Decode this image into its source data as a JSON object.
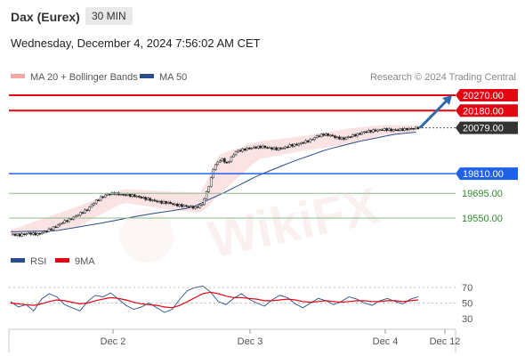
{
  "header": {
    "instrument": "Dax (Eurex)",
    "timeframe": "30 MIN",
    "datetime": "Wednesday, December 4, 2024 7:56:02 AM CET"
  },
  "legend": {
    "ma_bollinger": "MA 20 + Bollinger Bands",
    "ma50": "MA 50",
    "credit": "Research © 2024 Trading Central",
    "rsi": "RSI",
    "rsi_ma": "9MA"
  },
  "colors": {
    "target": "#e30613",
    "current": "#333333",
    "pivot": "#1e63e6",
    "support": "#2e8b2e",
    "ma20": "#f4a6a6",
    "ma50": "#2a4e8c",
    "arrow": "#2e6aa8"
  },
  "watermark": "WikiFX",
  "chart_data": [
    {
      "type": "candlestick",
      "title": "Dax (Eurex) 30 MIN",
      "ylim": [
        19380,
        20330
      ],
      "x_ticks": [
        "Dec 2",
        "Dec 3",
        "Dec 4",
        "Dec 12"
      ],
      "levels": [
        {
          "value": 20270.0,
          "label": "20270.00",
          "kind": "target"
        },
        {
          "value": 20180.0,
          "label": "20180.00",
          "kind": "target"
        },
        {
          "value": 20079.0,
          "label": "20079.00",
          "kind": "current"
        },
        {
          "value": 19810.0,
          "label": "19810.00",
          "kind": "pivot"
        },
        {
          "value": 19695.0,
          "label": "19695.00",
          "kind": "support"
        },
        {
          "value": 19550.0,
          "label": "19550.00",
          "kind": "support"
        }
      ],
      "price_path": [
        [
          0,
          19455
        ],
        [
          4,
          19450
        ],
        [
          8,
          19460
        ],
        [
          12,
          19455
        ],
        [
          16,
          19475
        ],
        [
          20,
          19500
        ],
        [
          23,
          19525
        ],
        [
          26,
          19540
        ],
        [
          30,
          19570
        ],
        [
          34,
          19600
        ],
        [
          37,
          19640
        ],
        [
          40,
          19670
        ],
        [
          43,
          19690
        ],
        [
          46,
          19695
        ],
        [
          49,
          19688
        ],
        [
          52,
          19685
        ],
        [
          55,
          19680
        ],
        [
          58,
          19670
        ],
        [
          61,
          19660
        ],
        [
          64,
          19650
        ],
        [
          67,
          19642
        ],
        [
          70,
          19640
        ],
        [
          73,
          19628
        ],
        [
          76,
          19622
        ],
        [
          79,
          19618
        ],
        [
          82,
          19610
        ],
        [
          85,
          19630
        ],
        [
          87,
          19700
        ],
        [
          89,
          19780
        ],
        [
          90,
          19840
        ],
        [
          92,
          19880
        ],
        [
          94,
          19895
        ],
        [
          96,
          19870
        ],
        [
          98,
          19905
        ],
        [
          100,
          19940
        ],
        [
          103,
          19950
        ],
        [
          106,
          19960
        ],
        [
          109,
          19965
        ],
        [
          112,
          19968
        ],
        [
          115,
          19960
        ],
        [
          118,
          19955
        ],
        [
          121,
          19960
        ],
        [
          124,
          19975
        ],
        [
          127,
          19980
        ],
        [
          130,
          19995
        ],
        [
          133,
          20005
        ],
        [
          136,
          20030
        ],
        [
          139,
          20040
        ],
        [
          142,
          20035
        ],
        [
          145,
          20020
        ],
        [
          148,
          20015
        ],
        [
          151,
          20030
        ],
        [
          154,
          20040
        ],
        [
          157,
          20055
        ],
        [
          160,
          20060
        ],
        [
          163,
          20065
        ],
        [
          166,
          20070
        ],
        [
          169,
          20065
        ],
        [
          172,
          20068
        ],
        [
          175,
          20070
        ],
        [
          178,
          20075
        ],
        [
          181,
          20079
        ]
      ],
      "ma50_path": [
        [
          0,
          19470
        ],
        [
          20,
          19475
        ],
        [
          40,
          19520
        ],
        [
          60,
          19570
        ],
        [
          80,
          19610
        ],
        [
          95,
          19700
        ],
        [
          110,
          19800
        ],
        [
          125,
          19880
        ],
        [
          140,
          19950
        ],
        [
          155,
          20000
        ],
        [
          170,
          20040
        ],
        [
          181,
          20055
        ]
      ],
      "bollinger": {
        "upper": [
          [
            0,
            19480
          ],
          [
            30,
            19620
          ],
          [
            50,
            19720
          ],
          [
            70,
            19705
          ],
          [
            85,
            19700
          ],
          [
            92,
            19920
          ],
          [
            110,
            20000
          ],
          [
            130,
            20030
          ],
          [
            150,
            20075
          ],
          [
            165,
            20095
          ],
          [
            181,
            20095
          ]
        ],
        "lower": [
          [
            0,
            19440
          ],
          [
            30,
            19500
          ],
          [
            50,
            19640
          ],
          [
            70,
            19600
          ],
          [
            85,
            19580
          ],
          [
            92,
            19680
          ],
          [
            110,
            19895
          ],
          [
            130,
            19945
          ],
          [
            150,
            19980
          ],
          [
            165,
            20035
          ],
          [
            181,
            20055
          ]
        ]
      },
      "forecast_arrow": {
        "from": 20079,
        "to": 20270
      }
    },
    {
      "type": "line",
      "title": "RSI",
      "ylim": [
        25,
        75
      ],
      "y_ticks": [
        70,
        50,
        30
      ],
      "series": [
        {
          "name": "RSI",
          "values": [
            52,
            45,
            48,
            40,
            55,
            62,
            58,
            48,
            44,
            40,
            52,
            60,
            58,
            63,
            55,
            47,
            42,
            45,
            50,
            44,
            38,
            42,
            55,
            66,
            70,
            72,
            64,
            52,
            48,
            56,
            62,
            55,
            50,
            46,
            54,
            60,
            57,
            49,
            44,
            50,
            56,
            53,
            48,
            52,
            58,
            55,
            50,
            47,
            53,
            56,
            52,
            49,
            55,
            58
          ]
        },
        {
          "name": "9MA",
          "values": [
            50,
            49,
            48,
            47,
            49,
            52,
            54,
            53,
            51,
            49,
            50,
            53,
            55,
            57,
            56,
            54,
            51,
            49,
            48,
            47,
            45,
            44,
            47,
            52,
            57,
            62,
            64,
            62,
            59,
            57,
            57,
            56,
            55,
            53,
            53,
            54,
            55,
            54,
            52,
            51,
            52,
            53,
            52,
            51,
            52,
            53,
            53,
            52,
            52,
            53,
            53,
            52,
            53,
            54
          ]
        }
      ]
    }
  ]
}
